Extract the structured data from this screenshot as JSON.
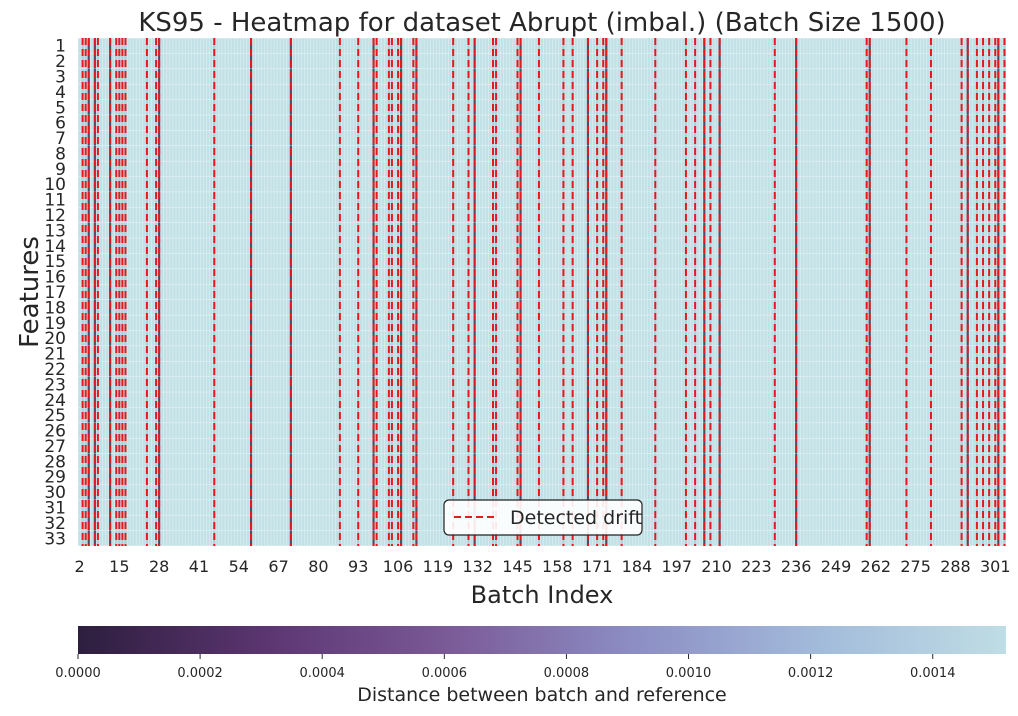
{
  "chart_data": {
    "type": "heatmap",
    "title": "KS95 - Heatmap for dataset Abrupt (imbal.) (Batch Size 1500)",
    "xlabel": "Batch Index",
    "ylabel": "Features",
    "x_start": 2,
    "x_end": 304,
    "x_ticks": [
      2,
      15,
      28,
      41,
      54,
      67,
      80,
      93,
      106,
      119,
      132,
      145,
      158,
      171,
      184,
      197,
      210,
      223,
      236,
      249,
      262,
      275,
      288,
      301
    ],
    "y_ticks": [
      1,
      2,
      3,
      4,
      5,
      6,
      7,
      8,
      9,
      10,
      11,
      12,
      13,
      14,
      15,
      16,
      17,
      18,
      19,
      20,
      21,
      22,
      23,
      24,
      25,
      26,
      27,
      28,
      29,
      30,
      31,
      32,
      33
    ],
    "legend": {
      "label": "Detected drift",
      "placement": "lower-center",
      "color": "#e41a1c"
    },
    "drift_batches": [
      3,
      4,
      5,
      7,
      8,
      12,
      14,
      15,
      16,
      17,
      24,
      27,
      28,
      46,
      58,
      71,
      87,
      93,
      98,
      99,
      103,
      104,
      106,
      107,
      111,
      112,
      124,
      129,
      131,
      137,
      138,
      145,
      146,
      152,
      160,
      163,
      168,
      171,
      173,
      174,
      179,
      190,
      200,
      203,
      206,
      208,
      211,
      229,
      236,
      259,
      260,
      272,
      280,
      290,
      292,
      295,
      297,
      299,
      301,
      302,
      304
    ],
    "dark_batches": [
      5,
      7,
      12,
      28,
      58,
      71,
      98,
      107,
      112,
      131,
      146,
      168,
      174,
      206,
      211,
      236,
      260,
      292,
      302
    ],
    "colorbar": {
      "label": "Distance between batch and reference",
      "min": 0.0,
      "max": 0.00152,
      "ticks": [
        "0.0000",
        "0.0002",
        "0.0004",
        "0.0006",
        "0.0008",
        "0.0010",
        "0.0012",
        "0.0014"
      ],
      "tick_values": [
        0.0,
        0.0002,
        0.0004,
        0.0006,
        0.0008,
        0.001,
        0.0012,
        0.0014
      ],
      "colors": [
        "#2d1e3e",
        "#5b3570",
        "#7b5a98",
        "#8c8ec4",
        "#a3bbdb",
        "#bfdde4"
      ]
    }
  }
}
